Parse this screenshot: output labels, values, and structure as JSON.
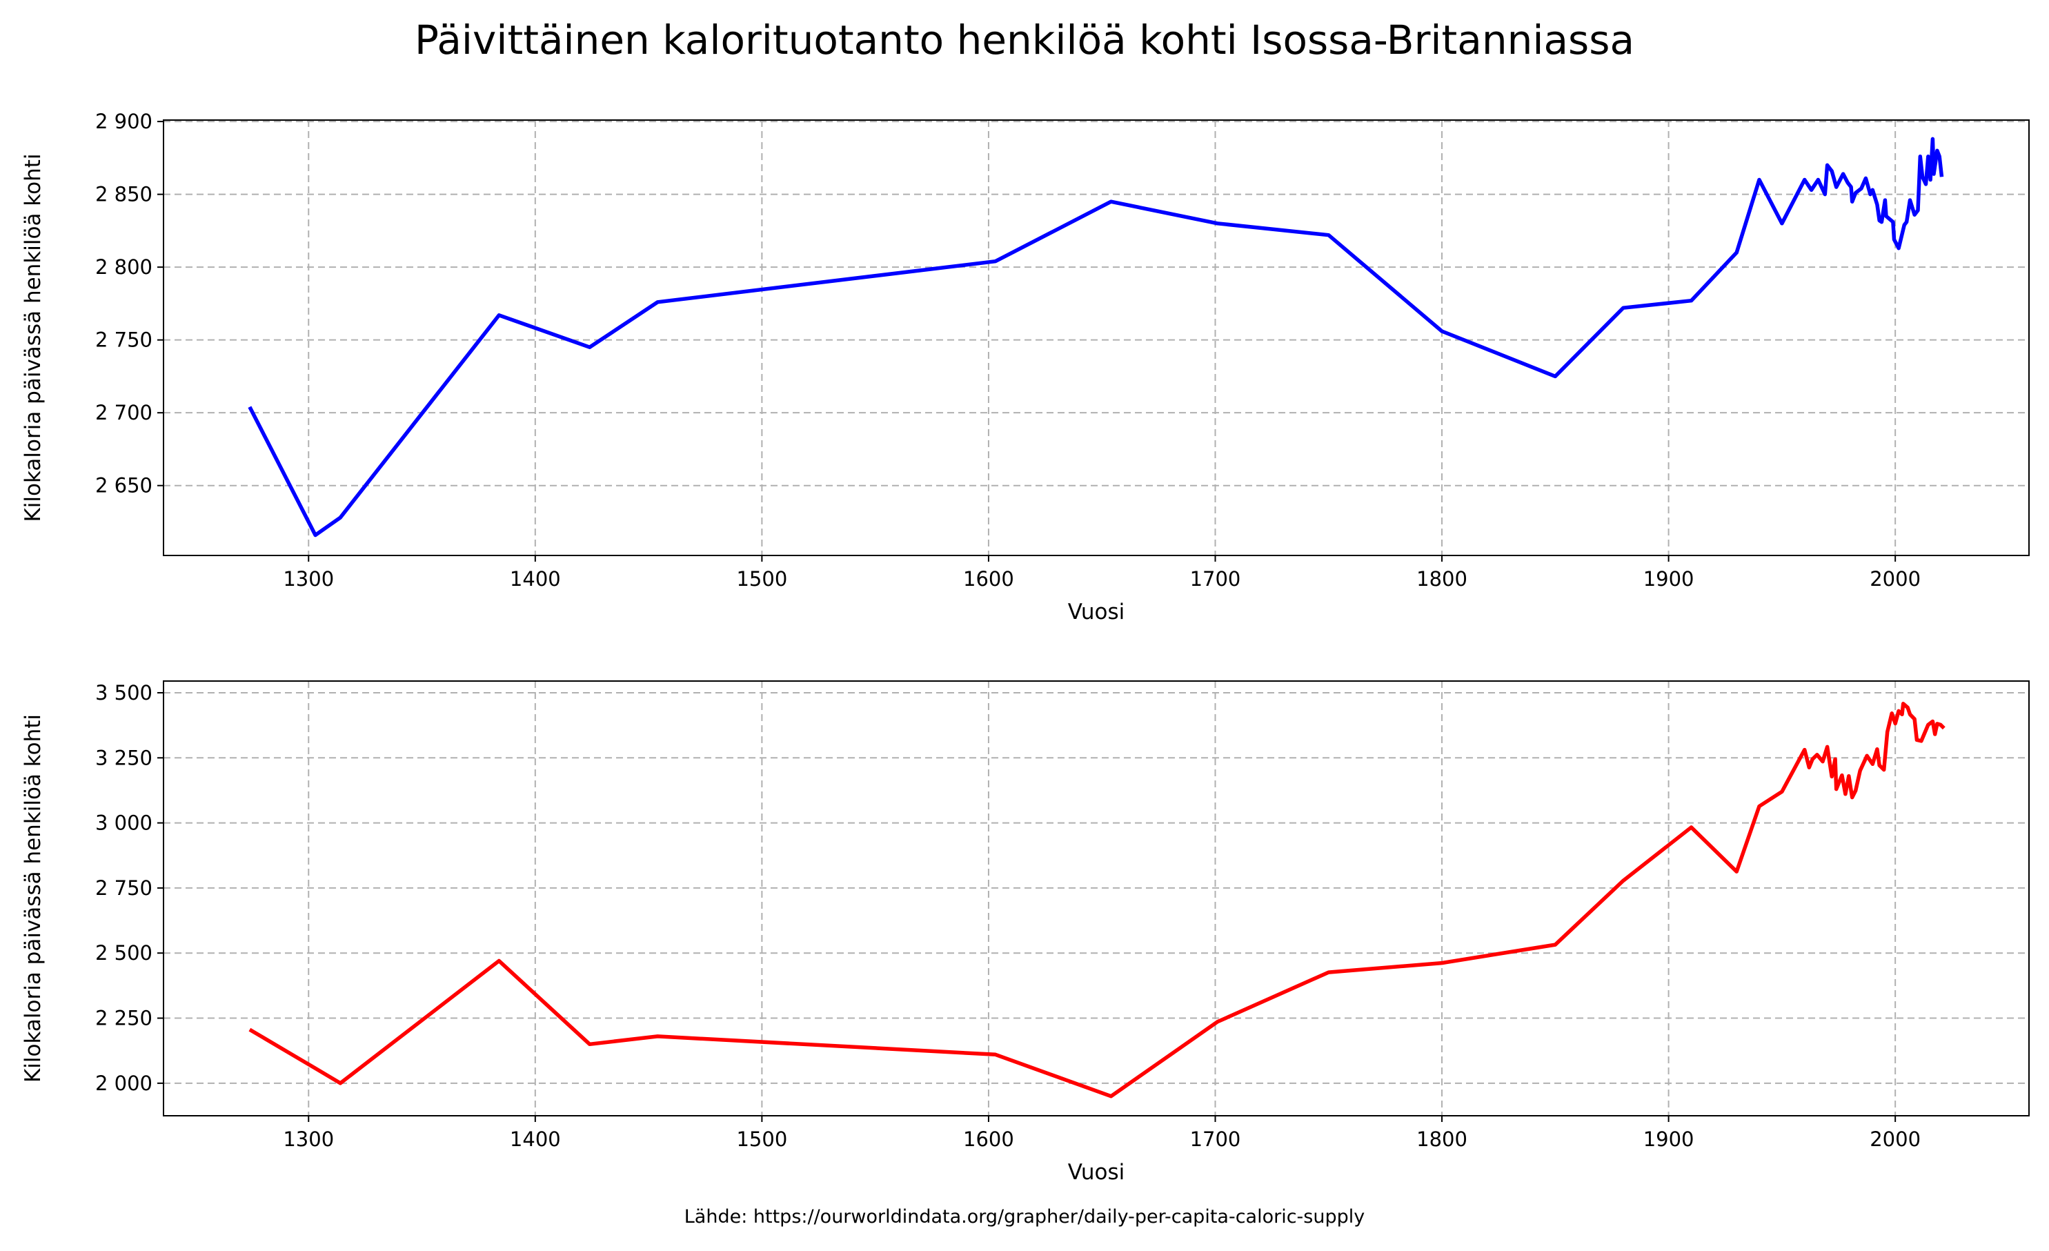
{
  "title": "Päivittäinen kalorituotanto henkilöä kohti Isossa-Britanniassa",
  "source": "Lähde: https://ourworldindata.org/grapher/daily-per-capita-caloric-supply",
  "chart_data": [
    {
      "type": "line",
      "xlabel": "Vuosi",
      "ylabel": "Kilokaloria päivässä henkilöä kohti",
      "xlim": [
        1236,
        2059
      ],
      "ylim": [
        2602,
        2901
      ],
      "xticks": [
        1300,
        1400,
        1500,
        1600,
        1700,
        1800,
        1900,
        2000
      ],
      "xtick_labels": [
        "1300",
        "1400",
        "1500",
        "1600",
        "1700",
        "1800",
        "1900",
        "2000"
      ],
      "yticks": [
        2650,
        2700,
        2750,
        2800,
        2850,
        2900
      ],
      "ytick_labels": [
        "2 650",
        "2 700",
        "2 750",
        "2 800",
        "2 850",
        "2 900"
      ],
      "grid": true,
      "color": "#0000ff",
      "x": [
        1274,
        1303,
        1314,
        1384,
        1424,
        1454,
        1603,
        1654,
        1701,
        1750,
        1800,
        1850,
        1880,
        1910,
        1930,
        1940,
        1950,
        1960,
        1963,
        1966,
        1969,
        1970,
        1972,
        1974,
        1977,
        1979,
        1980.5,
        1981,
        1982.5,
        1985,
        1987,
        1989,
        1990,
        1992,
        1993,
        1994,
        1995.5,
        1996,
        1999,
        1999.5,
        2001.5,
        2004,
        2005,
        2006.5,
        2008.5,
        2010,
        2011,
        2012,
        2013.5,
        2014.5,
        2015.5,
        2016.5,
        2017,
        2018.5,
        2019.5,
        2020.5
      ],
      "y": [
        2704,
        2616,
        2628,
        2767,
        2745,
        2776,
        2804,
        2845,
        2830,
        2822,
        2756,
        2725,
        2772,
        2777,
        2810,
        2860,
        2830,
        2860,
        2853,
        2860,
        2850,
        2870,
        2866,
        2855,
        2864,
        2858,
        2855,
        2845,
        2851,
        2854,
        2861,
        2850,
        2853,
        2843,
        2832,
        2831,
        2846,
        2835,
        2831,
        2819,
        2813,
        2829,
        2831,
        2846,
        2836,
        2839,
        2876,
        2862,
        2857,
        2876,
        2860,
        2888,
        2864,
        2880,
        2876,
        2862
      ]
    },
    {
      "type": "line",
      "xlabel": "Vuosi",
      "ylabel": "Kilokaloria päivässä henkilöä kohti",
      "xlim": [
        1236,
        2059
      ],
      "ylim": [
        1875,
        3545
      ],
      "xticks": [
        1300,
        1400,
        1500,
        1600,
        1700,
        1800,
        1900,
        2000
      ],
      "xtick_labels": [
        "1300",
        "1400",
        "1500",
        "1600",
        "1700",
        "1800",
        "1900",
        "2000"
      ],
      "yticks": [
        2000,
        2250,
        2500,
        2750,
        3000,
        3250,
        3500
      ],
      "ytick_labels": [
        "2 000",
        "2 250",
        "2 500",
        "2 750",
        "3 000",
        "3 250",
        "3 500"
      ],
      "grid": true,
      "color": "#ff0000",
      "x": [
        1274,
        1303,
        1314,
        1384,
        1424,
        1454,
        1603,
        1654,
        1701,
        1750,
        1800,
        1850,
        1880,
        1910,
        1930,
        1940,
        1950,
        1960,
        1962,
        1963.5,
        1965.5,
        1968,
        1970,
        1972,
        1973.5,
        1974,
        1976.5,
        1978,
        1979.5,
        1981,
        1982.5,
        1984.5,
        1987.5,
        1990,
        1992,
        1993,
        1995,
        1996.5,
        1998.5,
        2000,
        2001.5,
        2003,
        2003.5,
        2005.5,
        2006.5,
        2008.5,
        2009.5,
        2011.5,
        2014.5,
        2016.5,
        2017.5,
        2018.5,
        2020,
        2021.5
      ],
      "y": [
        2206,
        2057,
        2000,
        2470,
        2150,
        2180,
        2110,
        1950,
        2236,
        2426,
        2462,
        2532,
        2778,
        2983,
        2813,
        3064,
        3120,
        3281,
        3213,
        3245,
        3262,
        3236,
        3292,
        3178,
        3245,
        3130,
        3183,
        3111,
        3180,
        3098,
        3124,
        3201,
        3258,
        3226,
        3283,
        3221,
        3204,
        3350,
        3421,
        3382,
        3430,
        3417,
        3458,
        3443,
        3417,
        3399,
        3319,
        3315,
        3377,
        3390,
        3341,
        3381,
        3377,
        3364
      ]
    }
  ]
}
